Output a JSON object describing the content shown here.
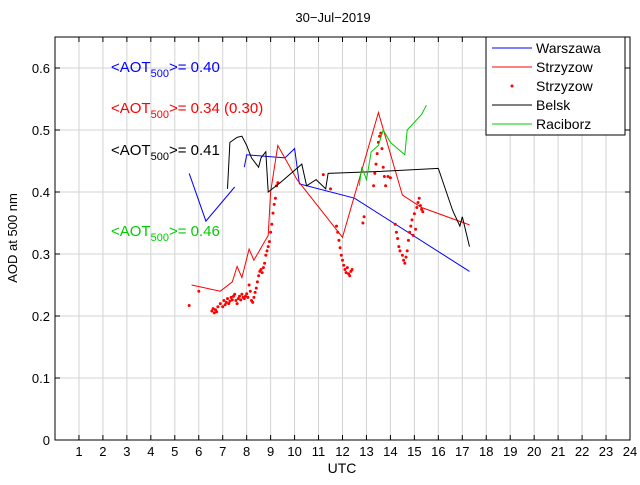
{
  "chart_data": {
    "type": "line",
    "title": "30−Jul−2019",
    "xlabel": "UTC",
    "ylabel": "AOD at 500 nm",
    "xlim": [
      0,
      24
    ],
    "ylim": [
      0,
      0.65
    ],
    "xticks": [
      1,
      2,
      3,
      4,
      5,
      6,
      7,
      8,
      9,
      10,
      11,
      12,
      13,
      14,
      15,
      16,
      17,
      18,
      19,
      20,
      21,
      22,
      23,
      24
    ],
    "yticks": [
      0,
      0.1,
      0.2,
      0.3,
      0.4,
      0.5,
      0.6
    ],
    "ytick_labels": [
      "0",
      "0.1",
      "0.2",
      "0.3",
      "0.4",
      "0.5",
      "0.6"
    ],
    "grid": true,
    "legend_position": "top-right",
    "series": [
      {
        "name": "Warszawa",
        "style": "line",
        "color": "#0000ff",
        "segments": [
          [
            [
              5.6,
              0.43
            ],
            [
              6.3,
              0.353
            ],
            [
              7.5,
              0.408
            ]
          ],
          [
            [
              7.9,
              0.44
            ],
            [
              8.0,
              0.46
            ],
            [
              9.6,
              0.455
            ],
            [
              10.0,
              0.47
            ],
            [
              10.2,
              0.413
            ],
            [
              12.5,
              0.39
            ],
            [
              17.3,
              0.272
            ]
          ]
        ]
      },
      {
        "name": "Strzyzow",
        "style": "line",
        "color": "#ff0000",
        "segments": [
          [
            [
              5.7,
              0.25
            ],
            [
              6.9,
              0.24
            ],
            [
              7.4,
              0.255
            ],
            [
              7.6,
              0.28
            ],
            [
              7.8,
              0.262
            ],
            [
              8.1,
              0.308
            ],
            [
              8.3,
              0.29
            ],
            [
              8.9,
              0.33
            ],
            [
              9.0,
              0.4
            ],
            [
              9.3,
              0.475
            ],
            [
              10.1,
              0.42
            ],
            [
              12.0,
              0.327
            ],
            [
              13.5,
              0.528
            ],
            [
              14.5,
              0.395
            ],
            [
              15.3,
              0.375
            ],
            [
              17.3,
              0.347
            ]
          ]
        ]
      },
      {
        "name": "Strzyzow",
        "style": "dots",
        "color": "#ff0000",
        "points": [
          [
            5.6,
            0.217
          ],
          [
            6.0,
            0.24
          ],
          [
            6.55,
            0.208
          ],
          [
            6.6,
            0.212
          ],
          [
            6.65,
            0.205
          ],
          [
            6.7,
            0.21
          ],
          [
            6.75,
            0.207
          ],
          [
            6.8,
            0.215
          ],
          [
            6.9,
            0.22
          ],
          [
            7.0,
            0.215
          ],
          [
            7.05,
            0.225
          ],
          [
            7.1,
            0.218
          ],
          [
            7.15,
            0.222
          ],
          [
            7.2,
            0.228
          ],
          [
            7.25,
            0.22
          ],
          [
            7.3,
            0.224
          ],
          [
            7.35,
            0.23
          ],
          [
            7.4,
            0.226
          ],
          [
            7.45,
            0.232
          ],
          [
            7.5,
            0.235
          ],
          [
            7.55,
            0.225
          ],
          [
            7.6,
            0.22
          ],
          [
            7.65,
            0.228
          ],
          [
            7.7,
            0.232
          ],
          [
            7.75,
            0.226
          ],
          [
            7.8,
            0.235
          ],
          [
            7.85,
            0.23
          ],
          [
            7.9,
            0.228
          ],
          [
            7.95,
            0.232
          ],
          [
            8.0,
            0.236
          ],
          [
            8.05,
            0.23
          ],
          [
            8.1,
            0.25
          ],
          [
            8.15,
            0.24
          ],
          [
            8.2,
            0.225
          ],
          [
            8.25,
            0.222
          ],
          [
            8.3,
            0.23
          ],
          [
            8.35,
            0.238
          ],
          [
            8.4,
            0.245
          ],
          [
            8.45,
            0.255
          ],
          [
            8.5,
            0.265
          ],
          [
            8.55,
            0.272
          ],
          [
            8.6,
            0.275
          ],
          [
            8.65,
            0.27
          ],
          [
            8.7,
            0.278
          ],
          [
            8.75,
            0.285
          ],
          [
            8.8,
            0.298
          ],
          [
            8.85,
            0.305
          ],
          [
            8.9,
            0.312
          ],
          [
            8.95,
            0.32
          ],
          [
            9.0,
            0.335
          ],
          [
            9.05,
            0.348
          ],
          [
            9.1,
            0.366
          ],
          [
            9.15,
            0.38
          ],
          [
            9.2,
            0.39
          ],
          [
            9.25,
            0.41
          ],
          [
            9.3,
            0.415
          ],
          [
            11.2,
            0.428
          ],
          [
            11.5,
            0.405
          ],
          [
            11.75,
            0.345
          ],
          [
            11.8,
            0.335
          ],
          [
            11.85,
            0.322
          ],
          [
            11.9,
            0.31
          ],
          [
            11.95,
            0.298
          ],
          [
            12.0,
            0.29
          ],
          [
            12.05,
            0.282
          ],
          [
            12.1,
            0.275
          ],
          [
            12.15,
            0.27
          ],
          [
            12.2,
            0.278
          ],
          [
            12.25,
            0.268
          ],
          [
            12.3,
            0.265
          ],
          [
            12.35,
            0.272
          ],
          [
            12.4,
            0.275
          ],
          [
            12.85,
            0.35
          ],
          [
            12.9,
            0.36
          ],
          [
            13.3,
            0.41
          ],
          [
            13.35,
            0.43
          ],
          [
            13.4,
            0.445
          ],
          [
            13.45,
            0.462
          ],
          [
            13.5,
            0.48
          ],
          [
            13.55,
            0.49
          ],
          [
            13.6,
            0.495
          ],
          [
            13.65,
            0.47
          ],
          [
            13.7,
            0.44
          ],
          [
            13.75,
            0.425
          ],
          [
            13.8,
            0.41
          ],
          [
            13.9,
            0.425
          ],
          [
            14.0,
            0.423
          ],
          [
            14.2,
            0.348
          ],
          [
            14.25,
            0.335
          ],
          [
            14.3,
            0.325
          ],
          [
            14.35,
            0.312
          ],
          [
            14.4,
            0.305
          ],
          [
            14.5,
            0.298
          ],
          [
            14.55,
            0.29
          ],
          [
            14.6,
            0.285
          ],
          [
            14.65,
            0.295
          ],
          [
            14.7,
            0.305
          ],
          [
            14.75,
            0.322
          ],
          [
            14.8,
            0.335
          ],
          [
            14.85,
            0.345
          ],
          [
            14.9,
            0.355
          ],
          [
            15.0,
            0.365
          ],
          [
            15.1,
            0.375
          ],
          [
            15.15,
            0.383
          ],
          [
            15.2,
            0.39
          ],
          [
            15.25,
            0.378
          ],
          [
            15.3,
            0.372
          ],
          [
            15.35,
            0.368
          ],
          [
            14.95,
            0.33
          ],
          [
            15.05,
            0.34
          ]
        ]
      },
      {
        "name": "Belsk",
        "style": "line",
        "color": "#000000",
        "segments": [
          [
            [
              7.2,
              0.405
            ],
            [
              7.3,
              0.48
            ],
            [
              7.6,
              0.488
            ],
            [
              7.8,
              0.49
            ],
            [
              8.0,
              0.475
            ],
            [
              8.2,
              0.455
            ],
            [
              8.5,
              0.44
            ],
            [
              8.6,
              0.455
            ],
            [
              8.8,
              0.465
            ],
            [
              8.9,
              0.4
            ],
            [
              9.4,
              0.415
            ],
            [
              10.3,
              0.445
            ],
            [
              10.5,
              0.41
            ],
            [
              10.9,
              0.42
            ],
            [
              11.3,
              0.405
            ],
            [
              11.4,
              0.43
            ],
            [
              13.5,
              0.433
            ],
            [
              16.0,
              0.438
            ],
            [
              16.6,
              0.37
            ],
            [
              16.9,
              0.345
            ],
            [
              17.0,
              0.36
            ],
            [
              17.3,
              0.312
            ]
          ]
        ]
      },
      {
        "name": "Raciborz",
        "style": "line",
        "color": "#00cc00",
        "segments": [
          [
            [
              12.7,
              0.41
            ],
            [
              12.8,
              0.44
            ],
            [
              13.0,
              0.42
            ],
            [
              13.2,
              0.465
            ],
            [
              13.5,
              0.475
            ],
            [
              13.7,
              0.5
            ],
            [
              14.0,
              0.48
            ],
            [
              14.6,
              0.46
            ],
            [
              14.7,
              0.5
            ],
            [
              15.3,
              0.525
            ],
            [
              15.5,
              0.54
            ]
          ]
        ]
      }
    ],
    "legend": [
      "Warszawa",
      "Strzyzow",
      "Strzyzow",
      "Belsk",
      "Raciborz"
    ],
    "annotations": [
      {
        "prefix": "<AOT",
        "sub": "500",
        "suffix": ">= 0.40",
        "color": "#0000ff"
      },
      {
        "prefix": "<AOT",
        "sub": "500",
        "suffix": ">= 0.34 (0.30)",
        "color": "#ff0000"
      },
      {
        "prefix": "<AOT",
        "sub": "500",
        "suffix": ">= 0.41",
        "color": "#000000"
      },
      {
        "prefix": "<AOT",
        "sub": "500",
        "suffix": ">= 0.46",
        "color": "#00cc00"
      }
    ]
  }
}
